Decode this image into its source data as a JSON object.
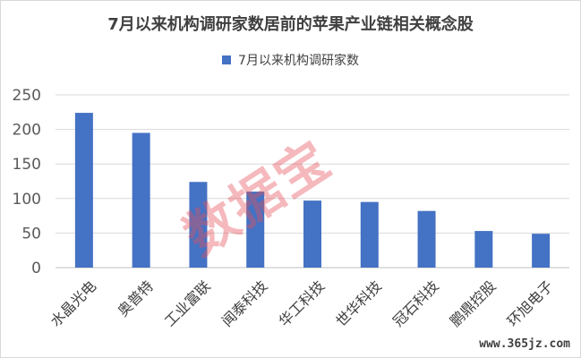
{
  "chart_data": {
    "type": "bar",
    "title": "7月以来机构调研家数居前的苹果产业链相关概念股",
    "categories": [
      "水晶光电",
      "奥普特",
      "工业富联",
      "闻泰科技",
      "华工科技",
      "世华科技",
      "冠石科技",
      "鹏鼎控股",
      "环旭电子"
    ],
    "series": [
      {
        "name": "7月以来机构调研家数",
        "values": [
          224,
          195,
          124,
          110,
          97,
          95,
          82,
          53,
          49
        ],
        "color": "#4472c4"
      }
    ],
    "ylim": [
      0,
      250
    ],
    "yticks": [
      0,
      50,
      100,
      150,
      200,
      250
    ],
    "grid": true,
    "legend": "top-center",
    "xlabel": "",
    "ylabel": ""
  },
  "watermark": "数据宝",
  "site_text": "www.365jz.com"
}
